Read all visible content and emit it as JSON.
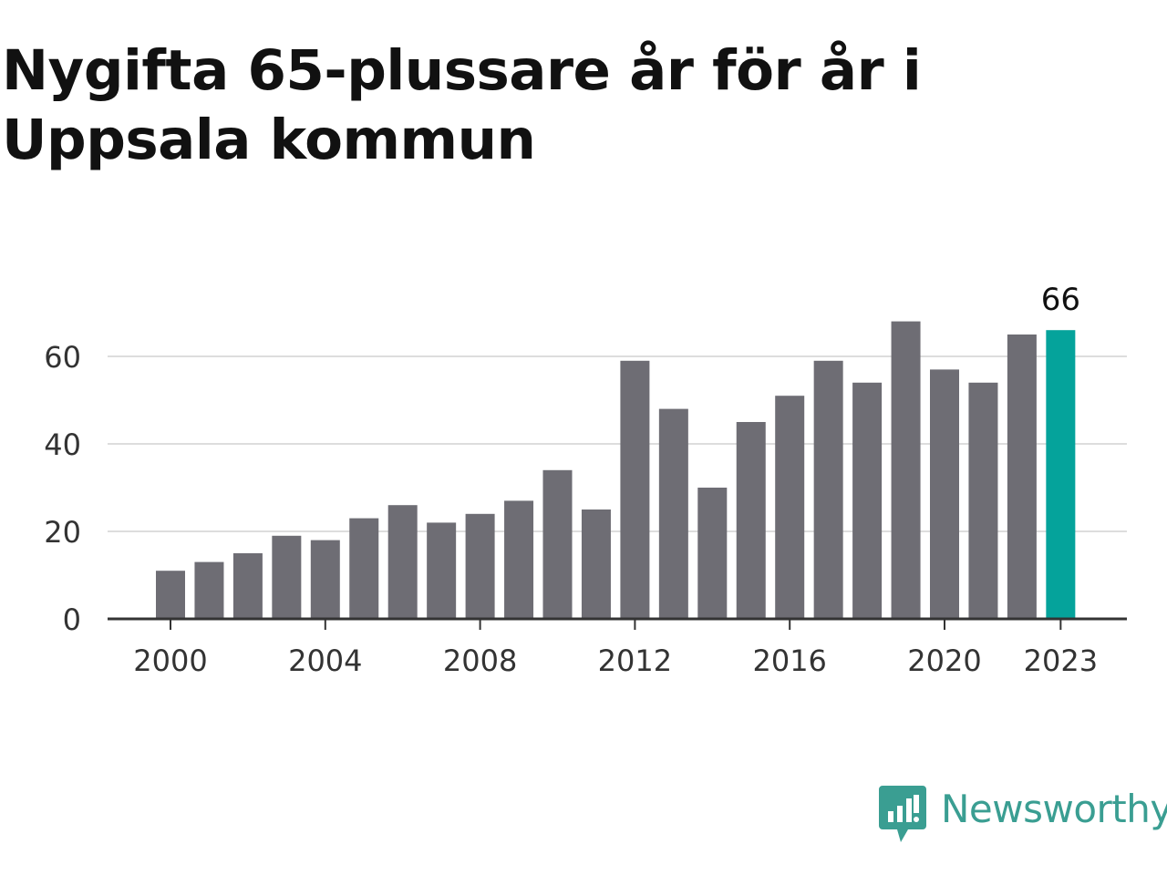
{
  "title": "Nygifta 65-plussare år för år i Uppsala kommun",
  "brand": {
    "name": "Newsworthy",
    "icon": "bar-chart-speech-bubble-icon",
    "color": "#3a9e92"
  },
  "chart_data": {
    "type": "bar",
    "title": "Nygifta 65-plussare år för år i Uppsala kommun",
    "xlabel": "",
    "ylabel": "",
    "categories": [
      2000,
      2001,
      2002,
      2003,
      2004,
      2005,
      2006,
      2007,
      2008,
      2009,
      2010,
      2011,
      2012,
      2013,
      2014,
      2015,
      2016,
      2017,
      2018,
      2019,
      2020,
      2021,
      2022,
      2023
    ],
    "values": [
      11,
      13,
      15,
      19,
      18,
      23,
      26,
      22,
      24,
      27,
      34,
      25,
      59,
      48,
      30,
      45,
      51,
      59,
      54,
      68,
      57,
      54,
      65,
      66
    ],
    "x_ticks": [
      "2000",
      "2004",
      "2008",
      "2012",
      "2016",
      "2020",
      "2023"
    ],
    "y_ticks": [
      "0",
      "20",
      "40",
      "60"
    ],
    "ylim": [
      0,
      70
    ],
    "grid": "horizontal",
    "legend": "none",
    "highlight": {
      "category": 2023,
      "label": "66"
    },
    "colors": {
      "bar": "#6e6d74",
      "highlight": "#05a39b",
      "grid": "#dddddd",
      "axis": "#333333"
    }
  }
}
